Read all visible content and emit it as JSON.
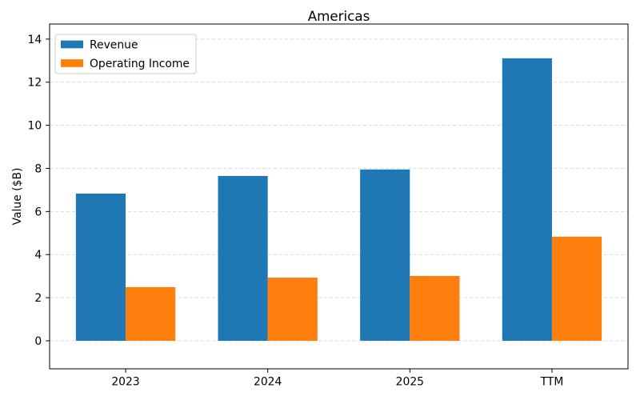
{
  "chart_data": {
    "type": "bar",
    "title": "Americas",
    "ylabel": "Value ($B)",
    "categories": [
      "2023",
      "2024",
      "2025",
      "TTM"
    ],
    "series": [
      {
        "name": "Revenue",
        "color": "#1f77b4",
        "values": [
          6.83,
          7.65,
          7.95,
          13.11
        ]
      },
      {
        "name": "Operating Income",
        "color": "#ff7f0e",
        "values": [
          2.49,
          2.93,
          3.01,
          4.83
        ]
      }
    ],
    "ylim": [
      -1.3,
      14.7
    ],
    "yticks": [
      0,
      2,
      4,
      6,
      8,
      10,
      12,
      14
    ],
    "grid": true,
    "legend": "upper left"
  }
}
